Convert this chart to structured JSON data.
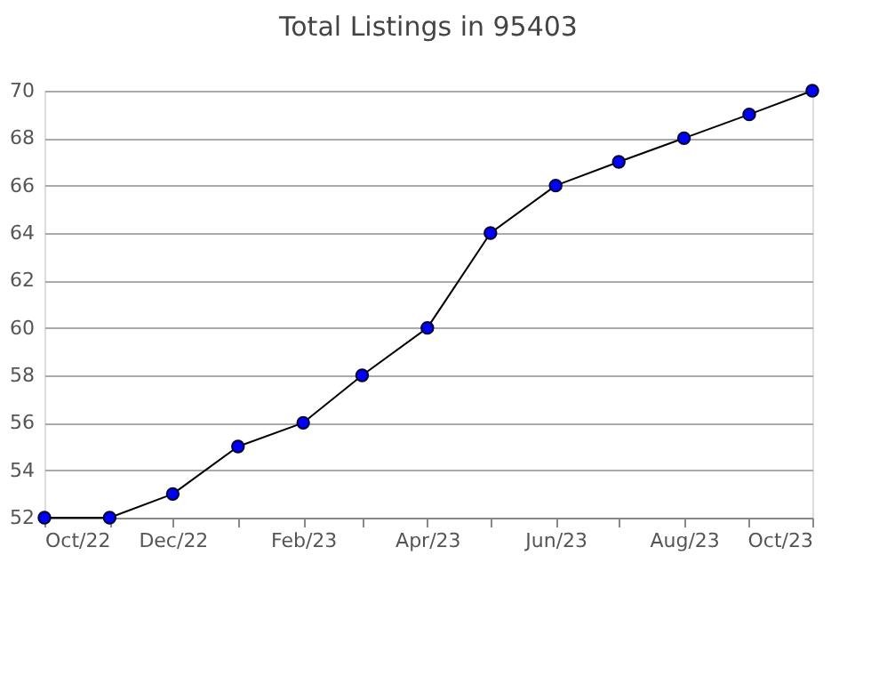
{
  "chart_data": {
    "type": "line",
    "title": "Total Listings in 95403",
    "x": [
      "2022-10",
      "2022-11",
      "2022-12",
      "2023-01",
      "2023-02",
      "2023-03",
      "2023-04",
      "2023-05",
      "2023-06",
      "2023-07",
      "2023-08",
      "2023-09",
      "2023-10"
    ],
    "series": [
      {
        "color": "#0000ff",
        "values": [
          52,
          52,
          53,
          55,
          56,
          58,
          60,
          64,
          66,
          67,
          68,
          69,
          70
        ]
      }
    ],
    "xlim": [
      "2022-10",
      "2023-10"
    ],
    "xticks": [
      {
        "value": "2022-10",
        "label": "Oct/22"
      },
      {
        "value": "2022-11",
        "label": null
      },
      {
        "value": "2022-12",
        "label": "Dec/22"
      },
      {
        "value": "2023-01",
        "label": null
      },
      {
        "value": "2023-02",
        "label": "Feb/23"
      },
      {
        "value": "2023-03",
        "label": null
      },
      {
        "value": "2023-04",
        "label": "Apr/23"
      },
      {
        "value": "2023-05",
        "label": null
      },
      {
        "value": "2023-06",
        "label": "Jun/23"
      },
      {
        "value": "2023-07",
        "label": null
      },
      {
        "value": "2023-08",
        "label": "Aug/23"
      },
      {
        "value": "2023-09",
        "label": null
      },
      {
        "value": "2023-10",
        "label": "Oct/23"
      }
    ],
    "ylim": [
      52,
      70
    ],
    "yticks": [
      52,
      54,
      56,
      58,
      60,
      62,
      64,
      66,
      68,
      70
    ],
    "grid": "y",
    "marker": "circle",
    "line_style": "solid"
  }
}
